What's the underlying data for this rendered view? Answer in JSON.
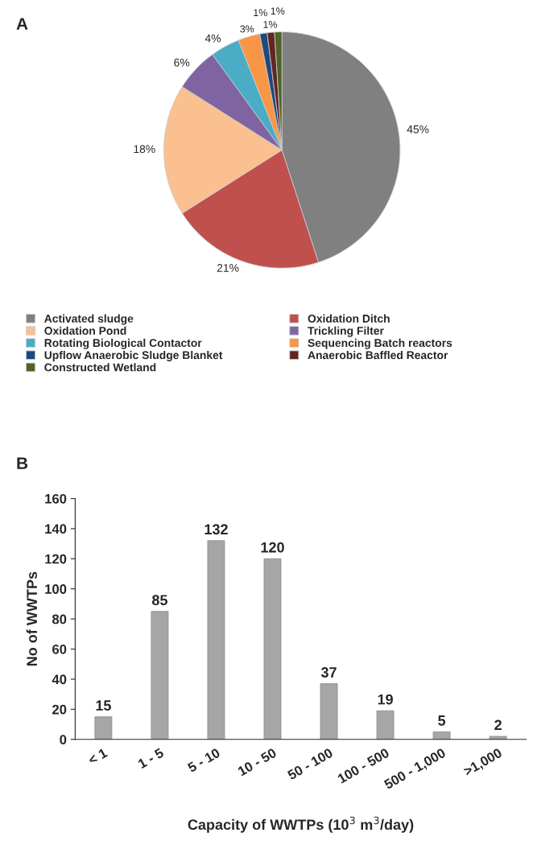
{
  "chart_data": [
    {
      "type": "pie",
      "title": "A",
      "categories": [
        "Activated sludge",
        "Oxidation Ditch",
        "Oxidation Pond",
        "Trickling Filter",
        "Rotating Biological Contactor",
        "Sequencing Batch reactors",
        "Upflow Anaerobic Sludge Blanket",
        "Anaerobic Baffled Reactor",
        "Constructed Wetland"
      ],
      "values": [
        45,
        21,
        18,
        6,
        4,
        3,
        1,
        1,
        1
      ],
      "value_labels": [
        "45%",
        "21%",
        "18%",
        "6%",
        "4%",
        "3%",
        "1%",
        "1%",
        "1%"
      ],
      "colors": [
        "#808080",
        "#c0504d",
        "#fac090",
        "#8064a2",
        "#4bacc6",
        "#f79646",
        "#1f497d",
        "#632523",
        "#4f6228"
      ],
      "legend": "bottom"
    },
    {
      "type": "bar",
      "title": "B",
      "categories": [
        "< 1",
        "1 - 5",
        "5 - 10",
        "10 - 50",
        "50 - 100",
        "100 - 500",
        "500 - 1,000",
        ">1,000"
      ],
      "values": [
        15,
        85,
        132,
        120,
        37,
        19,
        5,
        2
      ],
      "color": "#a6a6a6",
      "data_labels": true,
      "xlabel": "Capacity of WWTPs (10$^{3}$ m$^{3}$/day)",
      "ylabel": "No of WWTPs",
      "ylim": [
        0,
        160
      ],
      "yticks": [
        0,
        20,
        40,
        60,
        80,
        100,
        120,
        140,
        160
      ],
      "grid": false
    }
  ]
}
